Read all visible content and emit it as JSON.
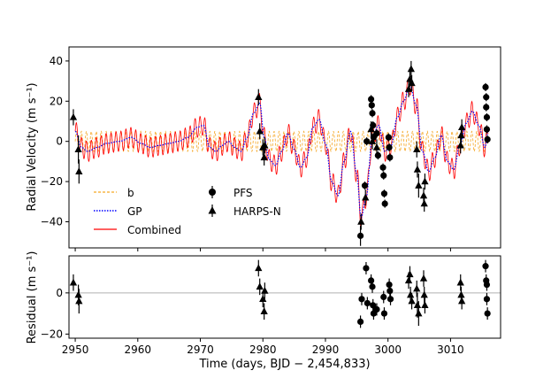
{
  "chart_data": [
    {
      "type": "line",
      "panel": "top",
      "xlabel": "",
      "ylabel": "Radial Velocity (m s⁻¹)",
      "xlim": [
        2949,
        3018
      ],
      "ylim": [
        -53,
        47
      ],
      "xticks": [
        2950,
        2960,
        2970,
        2980,
        2990,
        3000,
        3010
      ],
      "yticks": [
        -40,
        -20,
        0,
        20,
        40
      ],
      "tick_labels_y": [
        "−40",
        "−20",
        "0",
        "20",
        "40"
      ],
      "legend": {
        "placement": "lower-left",
        "model_entries": [
          "b",
          "GP",
          "Combined"
        ],
        "data_entries": [
          "PFS",
          "HARPS-N"
        ]
      },
      "colors": {
        "b": "#f5a623",
        "GP": "#0000ff",
        "Combined": "#ff0000",
        "data": "#000000"
      },
      "planet_b_signal": {
        "semi_amplitude": 5,
        "period_days": 0.79
      },
      "gp_curve": {
        "x": [
          2950.0,
          2951.0,
          2952.0,
          2953.5,
          2955.0,
          2957.0,
          2959.0,
          2960.5,
          2962.0,
          2963.5,
          2965.0,
          2966.5,
          2968.0,
          2969.5,
          2970.5,
          2971.5,
          2972.5,
          2973.5,
          2974.5,
          2975.5,
          2976.5,
          2977.5,
          2978.5,
          2979.5,
          2980.2,
          2981.0,
          2982.0,
          2983.0,
          2984.0,
          2985.0,
          2986.0,
          2987.0,
          2988.0,
          2989.0,
          2990.0,
          2991.0,
          2992.0,
          2993.0,
          2994.0,
          2995.0,
          2995.7,
          2996.5,
          2997.5,
          2998.5,
          2999.5,
          3000.5,
          3001.5,
          3002.5,
          3003.5,
          3004.5,
          3005.5,
          3006.5,
          3007.5,
          3008.5,
          3009.5,
          3010.5,
          3011.5,
          3012.5,
          3013.5,
          3014.5,
          3015.5,
          3016.0
        ],
        "y": [
          5,
          -3,
          -5,
          -3,
          -1,
          0,
          2,
          -1,
          -3,
          -2,
          -1,
          0,
          2,
          7,
          8,
          -3,
          -5,
          -2,
          0,
          -3,
          -5,
          2,
          14,
          19,
          2,
          -9,
          -12,
          -5,
          4,
          -4,
          -13,
          -8,
          7,
          11,
          -1,
          -20,
          -27,
          -10,
          5,
          -16,
          -38,
          -28,
          2,
          8,
          -5,
          -2,
          12,
          20,
          28,
          18,
          -5,
          -15,
          -8,
          3,
          -10,
          -14,
          -2,
          9,
          15,
          8,
          -3,
          5
        ]
      },
      "pfs": [
        {
          "x": 2995.6,
          "y": -47,
          "err": 5
        },
        {
          "x": 2996.3,
          "y": -22,
          "err": 2
        },
        {
          "x": 2996.6,
          "y": 0,
          "err": 2
        },
        {
          "x": 2997.3,
          "y": 21,
          "err": 2
        },
        {
          "x": 2997.4,
          "y": 18,
          "err": 2
        },
        {
          "x": 2997.5,
          "y": 14,
          "err": 2
        },
        {
          "x": 2997.6,
          "y": 8,
          "err": 2
        },
        {
          "x": 2997.7,
          "y": 2,
          "err": 2
        },
        {
          "x": 2998.2,
          "y": 4,
          "err": 2
        },
        {
          "x": 2998.4,
          "y": -7,
          "err": 2
        },
        {
          "x": 2999.2,
          "y": -13,
          "err": 2
        },
        {
          "x": 2999.3,
          "y": -17,
          "err": 2
        },
        {
          "x": 2999.4,
          "y": -26,
          "err": 2
        },
        {
          "x": 2999.5,
          "y": -31,
          "err": 2
        },
        {
          "x": 3000.1,
          "y": 2,
          "err": 2
        },
        {
          "x": 3000.2,
          "y": -3,
          "err": 2
        },
        {
          "x": 3000.3,
          "y": -8,
          "err": 2
        },
        {
          "x": 3015.6,
          "y": 27,
          "err": 2
        },
        {
          "x": 3015.7,
          "y": 22,
          "err": 2
        },
        {
          "x": 3015.7,
          "y": 17,
          "err": 2
        },
        {
          "x": 3015.8,
          "y": 12,
          "err": 2
        },
        {
          "x": 3015.8,
          "y": 6,
          "err": 2
        },
        {
          "x": 3015.9,
          "y": 1,
          "err": 2
        }
      ],
      "harps": [
        {
          "x": 2949.7,
          "y": 12,
          "err": 4
        },
        {
          "x": 2950.5,
          "y": -4,
          "err": 7
        },
        {
          "x": 2950.6,
          "y": -15,
          "err": 6
        },
        {
          "x": 2979.3,
          "y": 22,
          "err": 4
        },
        {
          "x": 2979.5,
          "y": 5,
          "err": 4
        },
        {
          "x": 2980.0,
          "y": -3,
          "err": 4
        },
        {
          "x": 2980.2,
          "y": -8,
          "err": 4
        },
        {
          "x": 2980.3,
          "y": -2,
          "err": 4
        },
        {
          "x": 2995.7,
          "y": -40,
          "err": 4
        },
        {
          "x": 2996.4,
          "y": -28,
          "err": 4
        },
        {
          "x": 2997.3,
          "y": 6,
          "err": 4
        },
        {
          "x": 2997.5,
          "y": 0,
          "err": 4
        },
        {
          "x": 2998.2,
          "y": -3,
          "err": 4
        },
        {
          "x": 3003.3,
          "y": 26,
          "err": 4
        },
        {
          "x": 3003.5,
          "y": 31,
          "err": 4
        },
        {
          "x": 3003.7,
          "y": 36,
          "err": 4
        },
        {
          "x": 3003.8,
          "y": 29,
          "err": 4
        },
        {
          "x": 3004.6,
          "y": -4,
          "err": 4
        },
        {
          "x": 3004.7,
          "y": -14,
          "err": 4
        },
        {
          "x": 3004.9,
          "y": -22,
          "err": 6
        },
        {
          "x": 3005.7,
          "y": -27,
          "err": 4
        },
        {
          "x": 3005.8,
          "y": -31,
          "err": 4
        },
        {
          "x": 3005.9,
          "y": -20,
          "err": 4
        },
        {
          "x": 3011.6,
          "y": -2,
          "err": 4
        },
        {
          "x": 3011.7,
          "y": 3,
          "err": 4
        },
        {
          "x": 3011.8,
          "y": 7,
          "err": 4
        }
      ]
    },
    {
      "type": "scatter",
      "panel": "bottom",
      "xlabel": "Time (days, BJD − 2,454,833)",
      "ylabel": "Residual (m s⁻¹)",
      "xlim": [
        2949,
        3018
      ],
      "ylim": [
        -22,
        18
      ],
      "xticks": [
        2950,
        2960,
        2970,
        2980,
        2990,
        3000,
        3010
      ],
      "tick_labels_x": [
        "2950",
        "2960",
        "2970",
        "2980",
        "2990",
        "3000",
        "3010"
      ],
      "yticks": [
        -20,
        0
      ],
      "tick_labels_y": [
        "−20",
        "0"
      ],
      "zero_line": 0,
      "pfs": [
        {
          "x": 2995.6,
          "y": -14,
          "err": 3
        },
        {
          "x": 2995.8,
          "y": -3,
          "err": 3
        },
        {
          "x": 2996.5,
          "y": 12,
          "err": 3
        },
        {
          "x": 2996.7,
          "y": -5,
          "err": 3
        },
        {
          "x": 2997.3,
          "y": 6,
          "err": 3
        },
        {
          "x": 2997.5,
          "y": 3,
          "err": 3
        },
        {
          "x": 2997.6,
          "y": -6,
          "err": 3
        },
        {
          "x": 2997.7,
          "y": -10,
          "err": 3
        },
        {
          "x": 2998.2,
          "y": -8,
          "err": 3
        },
        {
          "x": 2999.3,
          "y": -2,
          "err": 3
        },
        {
          "x": 2999.4,
          "y": -10,
          "err": 3
        },
        {
          "x": 3000.2,
          "y": 4,
          "err": 3
        },
        {
          "x": 3000.3,
          "y": 1,
          "err": 3
        },
        {
          "x": 3000.4,
          "y": -3,
          "err": 3
        },
        {
          "x": 3015.6,
          "y": 13,
          "err": 3
        },
        {
          "x": 3015.7,
          "y": 6,
          "err": 3
        },
        {
          "x": 3015.8,
          "y": 4,
          "err": 3
        },
        {
          "x": 3015.8,
          "y": -3,
          "err": 3
        },
        {
          "x": 3015.9,
          "y": -10,
          "err": 3
        }
      ],
      "harps": [
        {
          "x": 2949.7,
          "y": 5,
          "err": 4
        },
        {
          "x": 2950.5,
          "y": -1,
          "err": 5
        },
        {
          "x": 2950.6,
          "y": -4,
          "err": 6
        },
        {
          "x": 2979.3,
          "y": 12,
          "err": 4
        },
        {
          "x": 2979.5,
          "y": 3,
          "err": 4
        },
        {
          "x": 2980.0,
          "y": -3,
          "err": 4
        },
        {
          "x": 2980.2,
          "y": -9,
          "err": 4
        },
        {
          "x": 2980.3,
          "y": 1,
          "err": 4
        },
        {
          "x": 3003.3,
          "y": 6,
          "err": 4
        },
        {
          "x": 3003.5,
          "y": 9,
          "err": 4
        },
        {
          "x": 3003.6,
          "y": -1,
          "err": 4
        },
        {
          "x": 3003.8,
          "y": -4,
          "err": 4
        },
        {
          "x": 3004.6,
          "y": 2,
          "err": 4
        },
        {
          "x": 3004.7,
          "y": -6,
          "err": 6
        },
        {
          "x": 3004.9,
          "y": -10,
          "err": 6
        },
        {
          "x": 3005.7,
          "y": 7,
          "err": 4
        },
        {
          "x": 3005.8,
          "y": -1,
          "err": 4
        },
        {
          "x": 3005.9,
          "y": -6,
          "err": 4
        },
        {
          "x": 3011.6,
          "y": 5,
          "err": 4
        },
        {
          "x": 3011.7,
          "y": -1,
          "err": 4
        },
        {
          "x": 3011.8,
          "y": -4,
          "err": 4
        }
      ]
    }
  ]
}
